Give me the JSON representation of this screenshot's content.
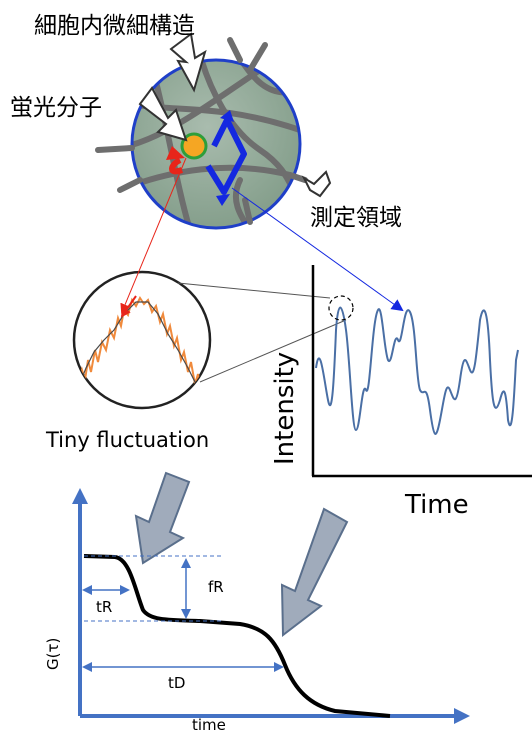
{
  "labels": {
    "cell_structure": "細胞内微細構造",
    "fluorescent_molecule": "蛍光分子",
    "measurement_region": "測定領域",
    "tiny_fluctuation": "Tiny fluctuation",
    "intensity_axis": "Intensity",
    "time_axis": "Time",
    "g_axis": "G(τ)",
    "time_axis_lower": "time",
    "fR": "fR",
    "tR": "tR",
    "tD": "tD"
  },
  "colors": {
    "trace": "#4a6fa5",
    "axis_blue": "#4472c4",
    "region_border": "#1f3fc8",
    "region_fill": "#8fa796",
    "molecule": "#f5a623",
    "molecule_ring": "#2e9e3a",
    "red_arrow": "#e8251a",
    "blue_arrow": "#1428e0",
    "big_arrow_fill": "#a0abbb",
    "big_arrow_stroke": "#5a6f8c",
    "zoom_trace": "#f08a3c"
  }
}
